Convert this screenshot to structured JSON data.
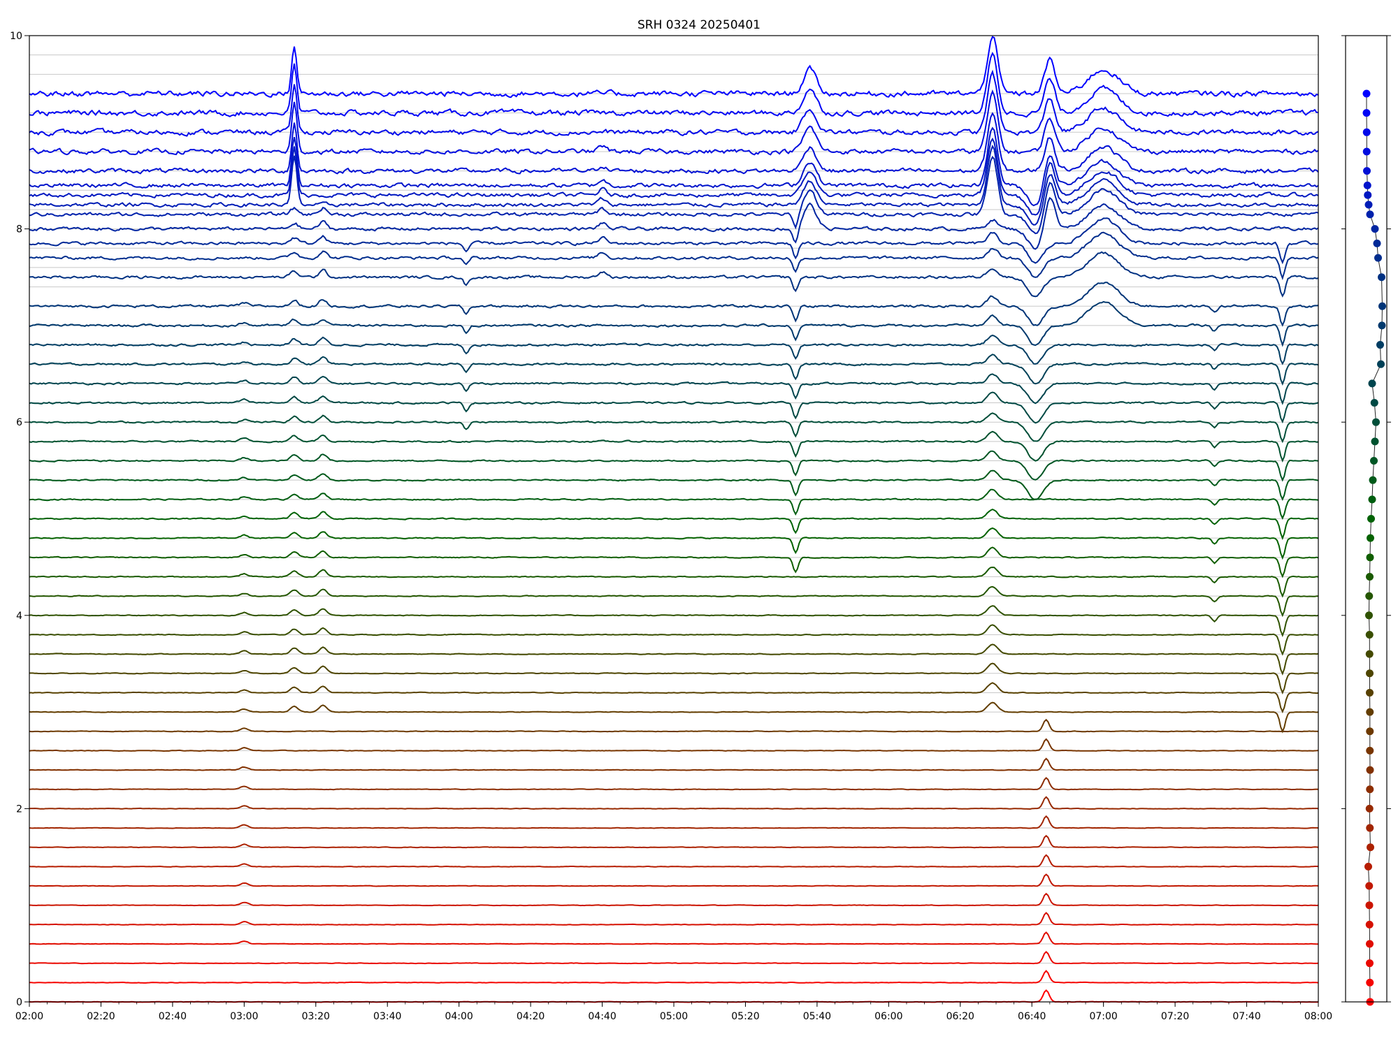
{
  "chart_data": [
    {
      "type": "line",
      "title": "SRH 0324 20250401",
      "xlabel": "",
      "ylabel": "",
      "xlim": [
        "02:00",
        "08:00"
      ],
      "ylim": [
        0,
        10
      ],
      "x_ticks": [
        "02:00",
        "02:20",
        "02:40",
        "03:00",
        "03:20",
        "03:40",
        "04:00",
        "04:20",
        "04:40",
        "05:00",
        "05:20",
        "05:40",
        "06:00",
        "06:20",
        "06:40",
        "07:00",
        "07:20",
        "07:40",
        "08:00"
      ],
      "y_ticks": [
        "0",
        "2",
        "4",
        "6",
        "8",
        "10"
      ],
      "grid": "horizontal reference line at each trace baseline",
      "legend": "none",
      "series_count": 50,
      "baseline_step": 0.2,
      "baselines": [
        0.0,
        0.2,
        0.4,
        0.6,
        0.8,
        1.0,
        1.2,
        1.4,
        1.6,
        1.8,
        2.0,
        2.2,
        2.4,
        2.6,
        2.8,
        3.0,
        3.2,
        3.4,
        3.6,
        3.8,
        4.0,
        4.2,
        4.4,
        4.6,
        4.8,
        5.0,
        5.2,
        5.4,
        5.6,
        5.8,
        6.0,
        6.2,
        6.4,
        6.6,
        6.8,
        7.0,
        7.2,
        7.4,
        7.6,
        7.8,
        8.0,
        8.2,
        8.4,
        8.6,
        8.8,
        9.0,
        9.2,
        9.4,
        9.6,
        9.8
      ],
      "trace_offsets": [
        0.0,
        0.2,
        0.4,
        0.6,
        0.8,
        1.0,
        1.2,
        1.4,
        1.6,
        1.8,
        2.0,
        2.2,
        2.4,
        2.6,
        2.8,
        3.0,
        3.2,
        3.4,
        3.6,
        3.8,
        4.0,
        4.2,
        4.4,
        4.6,
        4.8,
        5.0,
        5.2,
        5.4,
        5.6,
        5.8,
        6.0,
        6.2,
        6.4,
        6.6,
        6.8,
        7.0,
        7.2,
        7.5,
        7.7,
        7.85,
        8.0,
        8.15,
        8.25,
        8.35,
        8.45,
        8.6,
        8.8,
        9.0,
        9.2,
        9.4
      ],
      "color_ramp": [
        "#ff0000",
        "#006400",
        "#0000ff"
      ],
      "events": [
        {
          "time": "03:00",
          "amp": 0.03,
          "width_min": 1.5,
          "band": [
            0.05,
            0.75
          ]
        },
        {
          "time": "03:14",
          "amp": 0.5,
          "width_min": 1.0,
          "band": [
            0.85,
            1.0
          ]
        },
        {
          "time": "03:14",
          "amp": 0.06,
          "width_min": 1.5,
          "band": [
            0.3,
            0.85
          ]
        },
        {
          "time": "03:22",
          "amp": 0.07,
          "width_min": 1.5,
          "band": [
            0.3,
            0.85
          ]
        },
        {
          "time": "04:02",
          "amp": -0.08,
          "width_min": 1.0,
          "band": [
            0.6,
            0.8
          ]
        },
        {
          "time": "04:40",
          "amp": 0.06,
          "width_min": 1.5,
          "band": [
            0.75,
            0.95
          ]
        },
        {
          "time": "05:34",
          "amp": -0.15,
          "width_min": 1.0,
          "band": [
            0.45,
            0.85
          ]
        },
        {
          "time": "05:38",
          "amp": 0.25,
          "width_min": 2.5,
          "band": [
            0.8,
            1.0
          ]
        },
        {
          "time": "06:29",
          "amp": 0.6,
          "width_min": 2.0,
          "band": [
            0.82,
            1.0
          ]
        },
        {
          "time": "06:29",
          "amp": 0.1,
          "width_min": 2.0,
          "band": [
            0.3,
            0.82
          ]
        },
        {
          "time": "06:41",
          "amp": -0.2,
          "width_min": 3.0,
          "band": [
            0.55,
            0.9
          ]
        },
        {
          "time": "06:45",
          "amp": 0.35,
          "width_min": 2.0,
          "band": [
            0.8,
            1.0
          ]
        },
        {
          "time": "07:00",
          "amp": 0.25,
          "width_min": 6.0,
          "band": [
            0.7,
            1.0
          ]
        },
        {
          "time": "07:31",
          "amp": -0.06,
          "width_min": 1.0,
          "band": [
            0.4,
            0.75
          ]
        },
        {
          "time": "07:50",
          "amp": -0.2,
          "width_min": 1.0,
          "band": [
            0.3,
            0.8
          ]
        },
        {
          "time": "06:44",
          "amp": 0.12,
          "width_min": 1.2,
          "band": [
            0.0,
            0.3
          ]
        }
      ]
    },
    {
      "type": "scatter",
      "title": "",
      "xlabel": "",
      "ylabel": "",
      "ylim": [
        0,
        10
      ],
      "grid": "off",
      "legend": "none",
      "points_y": [
        0.0,
        0.2,
        0.4,
        0.6,
        0.8,
        1.0,
        1.2,
        1.4,
        1.6,
        1.8,
        2.0,
        2.2,
        2.4,
        2.6,
        2.8,
        3.0,
        3.2,
        3.4,
        3.6,
        3.8,
        4.0,
        4.2,
        4.4,
        4.6,
        4.8,
        5.0,
        5.2,
        5.4,
        5.6,
        5.8,
        6.0,
        6.2,
        6.4,
        6.6,
        6.8,
        7.0,
        7.2,
        7.5,
        7.7,
        7.85,
        8.0,
        8.15,
        8.25,
        8.35,
        8.45,
        8.6,
        8.8,
        9.0,
        9.2,
        9.4
      ],
      "points_x": [
        0.2,
        0.19,
        0.18,
        0.18,
        0.17,
        0.16,
        0.15,
        0.1,
        0.22,
        0.19,
        0.17,
        0.19,
        0.2,
        0.19,
        0.19,
        0.19,
        0.18,
        0.18,
        0.17,
        0.17,
        0.14,
        0.15,
        0.18,
        0.2,
        0.22,
        0.26,
        0.32,
        0.36,
        0.42,
        0.48,
        0.54,
        0.45,
        0.32,
        0.82,
        0.78,
        0.88,
        0.9,
        0.86,
        0.66,
        0.6,
        0.48,
        0.2,
        0.12,
        0.07,
        0.05,
        0.02,
        0.01,
        0.01,
        0.0,
        0.0
      ]
    }
  ]
}
